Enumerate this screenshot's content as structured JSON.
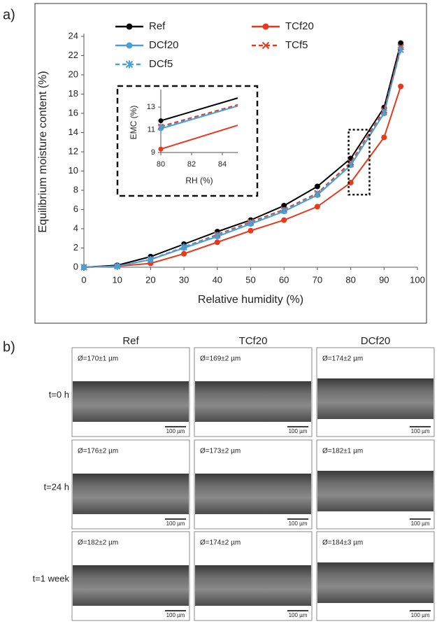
{
  "panel_labels": [
    "a)",
    "b)"
  ],
  "chart_data": [
    {
      "type": "line",
      "x_label": "Relative humidity (%)",
      "y_label": "Equilibrium moisture content (%)",
      "x": [
        0,
        10,
        20,
        30,
        40,
        50,
        60,
        70,
        80,
        90,
        95
      ],
      "xlim": [
        0,
        100
      ],
      "xticks": [
        0,
        10,
        20,
        30,
        40,
        50,
        60,
        70,
        80,
        90,
        100
      ],
      "ylim": [
        0,
        24
      ],
      "yticks": [
        0,
        2,
        4,
        6,
        8,
        10,
        12,
        14,
        16,
        18,
        20,
        22,
        24
      ],
      "series": [
        {
          "name": "Ref",
          "color": "#000000",
          "marker": "circle",
          "dashed": false,
          "values": [
            0,
            0.2,
            1.1,
            2.4,
            3.7,
            4.9,
            6.4,
            8.4,
            11.3,
            16.6,
            23.3
          ]
        },
        {
          "name": "TCf20",
          "color": "#e8391d",
          "marker": "circle",
          "dashed": false,
          "values": [
            0,
            0.1,
            0.4,
            1.4,
            2.6,
            3.8,
            4.9,
            6.3,
            8.8,
            13.5,
            18.8
          ]
        },
        {
          "name": "DCf20",
          "color": "#4a9fd4",
          "marker": "circle",
          "dashed": false,
          "values": [
            0,
            0.1,
            0.8,
            2.0,
            3.2,
            4.5,
            5.8,
            7.5,
            10.6,
            16.0,
            22.8
          ]
        },
        {
          "name": "TCf5",
          "color": "#e8391d",
          "marker": "x",
          "dashed": true,
          "values": [
            0,
            0.1,
            0.8,
            2.1,
            3.4,
            4.7,
            6.0,
            7.7,
            10.9,
            16.3,
            22.9
          ]
        },
        {
          "name": "DCf5",
          "color": "#4a9fd4",
          "marker": "asterisk",
          "dashed": true,
          "values": [
            0,
            0.1,
            0.8,
            2.1,
            3.3,
            4.6,
            5.9,
            7.6,
            10.7,
            16.1,
            22.6
          ]
        }
      ]
    },
    {
      "type": "line",
      "x_label": "RH (%)",
      "y_label": "EMC (%)",
      "x": [
        80,
        85
      ],
      "xlim": [
        80,
        85
      ],
      "xticks": [
        80,
        82,
        84
      ],
      "ylim": [
        9,
        14.3
      ],
      "yticks": [
        9,
        11,
        13
      ],
      "series": [
        {
          "color": "#000000",
          "marker": "circle",
          "dashed": false,
          "values": [
            11.8,
            13.8
          ]
        },
        {
          "color": "#e8391d",
          "marker": "circle",
          "dashed": false,
          "values": [
            9.3,
            11.4
          ]
        },
        {
          "color": "#4a9fd4",
          "marker": "circle",
          "dashed": false,
          "values": [
            11.1,
            13.1
          ]
        },
        {
          "color": "#e8391d",
          "marker": "x",
          "dashed": true,
          "values": [
            11.3,
            13.2
          ]
        },
        {
          "color": "#4a9fd4",
          "marker": "asterisk",
          "dashed": true,
          "values": [
            11.2,
            13.1
          ]
        }
      ]
    }
  ],
  "micrographs": {
    "columns": [
      "Ref",
      "TCf20",
      "DCf20"
    ],
    "rows": [
      "t=0 h",
      "t=24 h",
      "t=1 week"
    ],
    "diameters": [
      [
        "Ø=170±1 µm",
        "Ø=169±2 µm",
        "Ø=174±2 µm"
      ],
      [
        "Ø=176±2 µm",
        "Ø=173±2 µm",
        "Ø=182±1 µm"
      ],
      [
        "Ø=182±2 µm",
        "Ø=174±2 µm",
        "Ø=184±3 µm"
      ]
    ],
    "scale_bar": "100 µm"
  }
}
